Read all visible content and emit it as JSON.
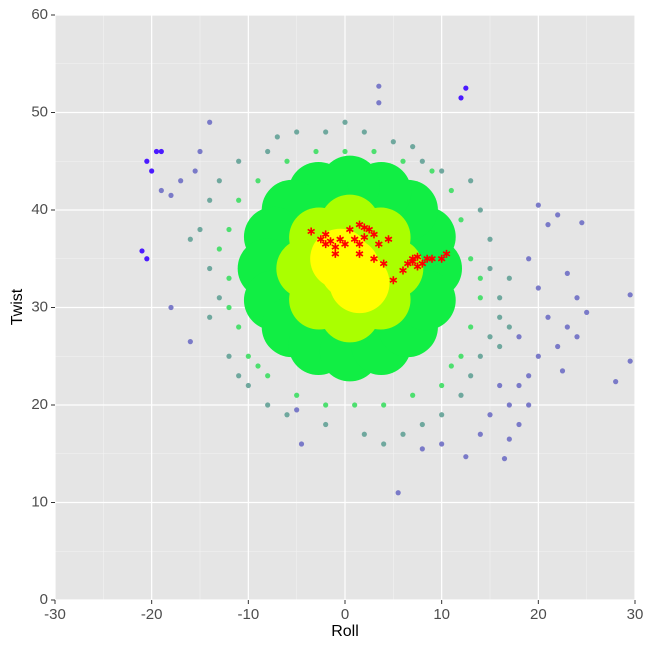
{
  "chart_data": {
    "type": "scatter",
    "x_label": "Roll",
    "y_label": "Twist",
    "xlim": [
      -30,
      30
    ],
    "ylim": [
      0,
      60
    ],
    "xticks": [
      -30,
      -20,
      -10,
      0,
      10,
      20,
      30
    ],
    "yticks": [
      0,
      10,
      20,
      30,
      40,
      50,
      60
    ],
    "xminor": [
      -25,
      -15,
      -5,
      5,
      15,
      25
    ],
    "yminor": [
      5,
      15,
      25,
      35,
      45,
      55
    ],
    "grid": true,
    "background": "#e5e5e5",
    "series": [
      {
        "color": "#7a7ac8",
        "marker": "circle",
        "size": 2.6,
        "x": [
          3.5,
          3.5,
          -14,
          -17,
          -18,
          -18,
          -16,
          -19,
          28,
          29.5,
          29.5,
          24.5,
          22,
          21,
          20,
          23,
          24,
          25,
          23,
          24,
          22,
          20,
          19,
          18,
          17,
          18,
          17,
          16.5,
          12.5,
          14,
          10,
          5.5,
          8,
          -4.5,
          -5,
          22.5,
          21,
          20,
          19,
          18,
          19,
          15,
          16,
          -15,
          -15.5
        ],
        "values": [
          52.7,
          51,
          49,
          43,
          41.5,
          30,
          26.5,
          42,
          22.4,
          24.5,
          31.3,
          38.7,
          39.5,
          38.5,
          40.5,
          33.5,
          31,
          29.5,
          28,
          27,
          26,
          25,
          23,
          22,
          20,
          18,
          16.5,
          14.5,
          14.7,
          17,
          16,
          11,
          15.5,
          16,
          19.5,
          23.5,
          29,
          32,
          35,
          27,
          20,
          19,
          22,
          46,
          44
        ]
      },
      {
        "color": "#6fa89e",
        "marker": "circle",
        "size": 2.6,
        "x": [
          -15,
          -16,
          -14,
          -14,
          -13,
          -12,
          -11,
          -10,
          -8,
          -6,
          -2,
          2,
          4,
          6,
          8,
          10,
          12,
          13,
          14,
          15,
          16,
          16,
          15,
          15,
          14,
          13,
          10,
          8,
          5,
          2,
          -2,
          -5,
          -8,
          -11,
          -13,
          -14,
          17,
          17,
          16,
          -7,
          0,
          7
        ],
        "values": [
          38,
          37,
          34,
          29,
          31,
          25,
          23,
          22,
          20,
          19,
          18,
          17,
          16,
          17,
          18,
          19,
          21,
          23,
          25,
          27,
          29,
          31,
          34,
          37,
          40,
          43,
          44,
          45,
          47,
          48,
          48,
          48,
          46,
          45,
          43,
          41,
          33,
          28,
          26,
          47.5,
          49,
          46.5
        ]
      },
      {
        "color": "#4ddf6f",
        "marker": "circle",
        "size": 2.6,
        "x": [
          -12,
          -12,
          -11,
          -10,
          -8,
          -5,
          -2,
          1,
          4,
          7,
          10,
          12,
          13,
          14,
          13,
          12,
          11,
          9,
          6,
          3,
          0,
          -3,
          -6,
          -9,
          -11,
          -13,
          -12,
          14,
          11,
          -9
        ],
        "values": [
          38,
          33,
          28,
          25,
          23,
          21,
          20,
          20,
          20,
          21,
          22,
          25,
          28,
          31,
          35,
          39,
          42,
          44,
          45,
          46,
          46,
          46,
          45,
          43,
          41,
          36,
          30,
          33,
          24,
          24
        ]
      },
      {
        "color": "#11ee44",
        "marker": "circle",
        "size": 30,
        "x": [
          9,
          8.35,
          6.51,
          3.75,
          0.5,
          -2.75,
          -5.51,
          -7.35,
          -8,
          -7.35,
          -5.51,
          -2.75,
          0.5,
          3.75,
          6.51,
          8.35
        ],
        "values": [
          34,
          37.25,
          40.01,
          41.85,
          42.5,
          41.85,
          40.01,
          37.25,
          34,
          30.75,
          27.99,
          26.15,
          25.5,
          26.15,
          27.99,
          30.75
        ]
      },
      {
        "color": "#aaff00",
        "marker": "circle",
        "size": 30,
        "x": [
          5,
          3.68,
          0.5,
          -2.68,
          -4,
          -2.68,
          0.5,
          3.68
        ],
        "values": [
          34,
          37.18,
          38.5,
          37.18,
          34,
          30.82,
          29.5,
          30.82
        ]
      },
      {
        "color": "#ffff00",
        "marker": "circle",
        "size": 30,
        "x": [
          0.5,
          1.5,
          -0.5
        ],
        "values": [
          34,
          32.5,
          35
        ]
      },
      {
        "color": "#4b1aff",
        "marker": "circle",
        "size": 2.6,
        "x": [
          -20.5,
          -19.5,
          -19,
          -20,
          -21,
          -20.5,
          12.5,
          12
        ],
        "values": [
          45,
          46,
          46,
          44,
          35.8,
          35,
          52.5,
          51.5
        ]
      },
      {
        "color": "#ff0000",
        "marker": "asterisk",
        "size": 4,
        "x": [
          -3.5,
          -2.5,
          -2,
          -1.5,
          -1,
          -0.5,
          0,
          -2,
          -1,
          0.5,
          1.5,
          2,
          2.5,
          1,
          1.5,
          2,
          3,
          3.5,
          3,
          4,
          4.5,
          1.5,
          5,
          6,
          6.5,
          7,
          7.5,
          7,
          8,
          8.5,
          9,
          10,
          10.5,
          7.5
        ],
        "values": [
          37.8,
          37,
          36.5,
          36.8,
          36.2,
          37,
          36.5,
          37.5,
          35.5,
          38,
          38.5,
          38.2,
          38,
          37,
          36.5,
          37.2,
          37.5,
          36.5,
          35,
          34.5,
          37,
          35.5,
          32.8,
          33.8,
          34.5,
          35,
          34.2,
          34.7,
          34.5,
          35,
          35,
          35,
          35.5,
          35.2
        ]
      }
    ]
  }
}
